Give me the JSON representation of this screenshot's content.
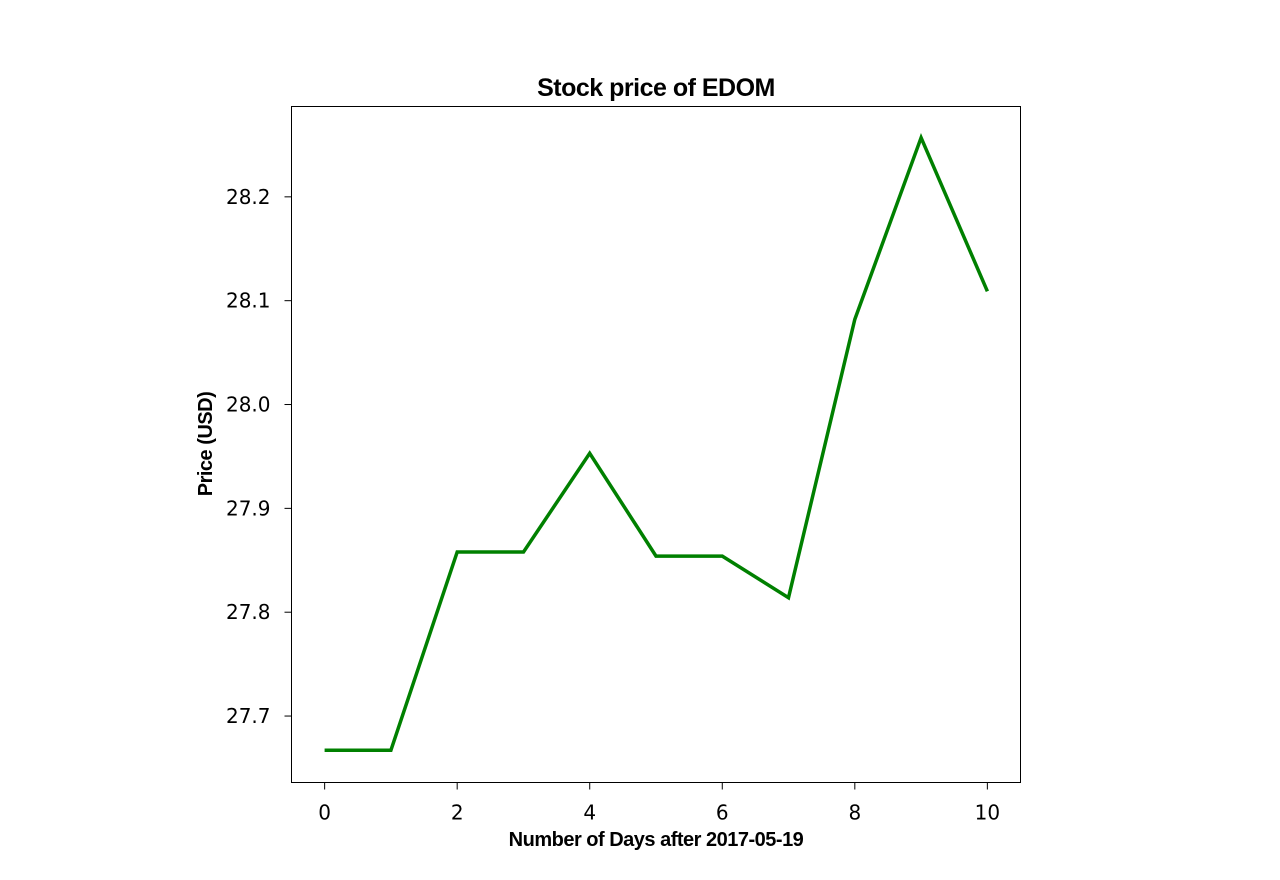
{
  "chart_data": {
    "type": "line",
    "title": "Stock price of EDOM",
    "xlabel": "Number of Days after 2017-05-19",
    "ylabel": "Price (USD)",
    "x": [
      0,
      1,
      2,
      3,
      4,
      5,
      6,
      7,
      8,
      9,
      10
    ],
    "series": [
      {
        "values": [
          27.667,
          27.667,
          27.858,
          27.858,
          27.953,
          27.854,
          27.854,
          27.814,
          28.082,
          28.257,
          28.109
        ],
        "color": "#008000"
      }
    ],
    "xlim": [
      -0.5,
      10.5
    ],
    "ylim": [
      27.636,
      28.287
    ],
    "xticks": [
      0,
      2,
      4,
      6,
      8,
      10
    ],
    "yticks": [
      27.7,
      27.8,
      27.9,
      28.0,
      28.1,
      28.2
    ],
    "ytick_labels": [
      "27.7",
      "27.8",
      "27.9",
      "28.0",
      "28.1",
      "28.2"
    ],
    "grid": false
  }
}
